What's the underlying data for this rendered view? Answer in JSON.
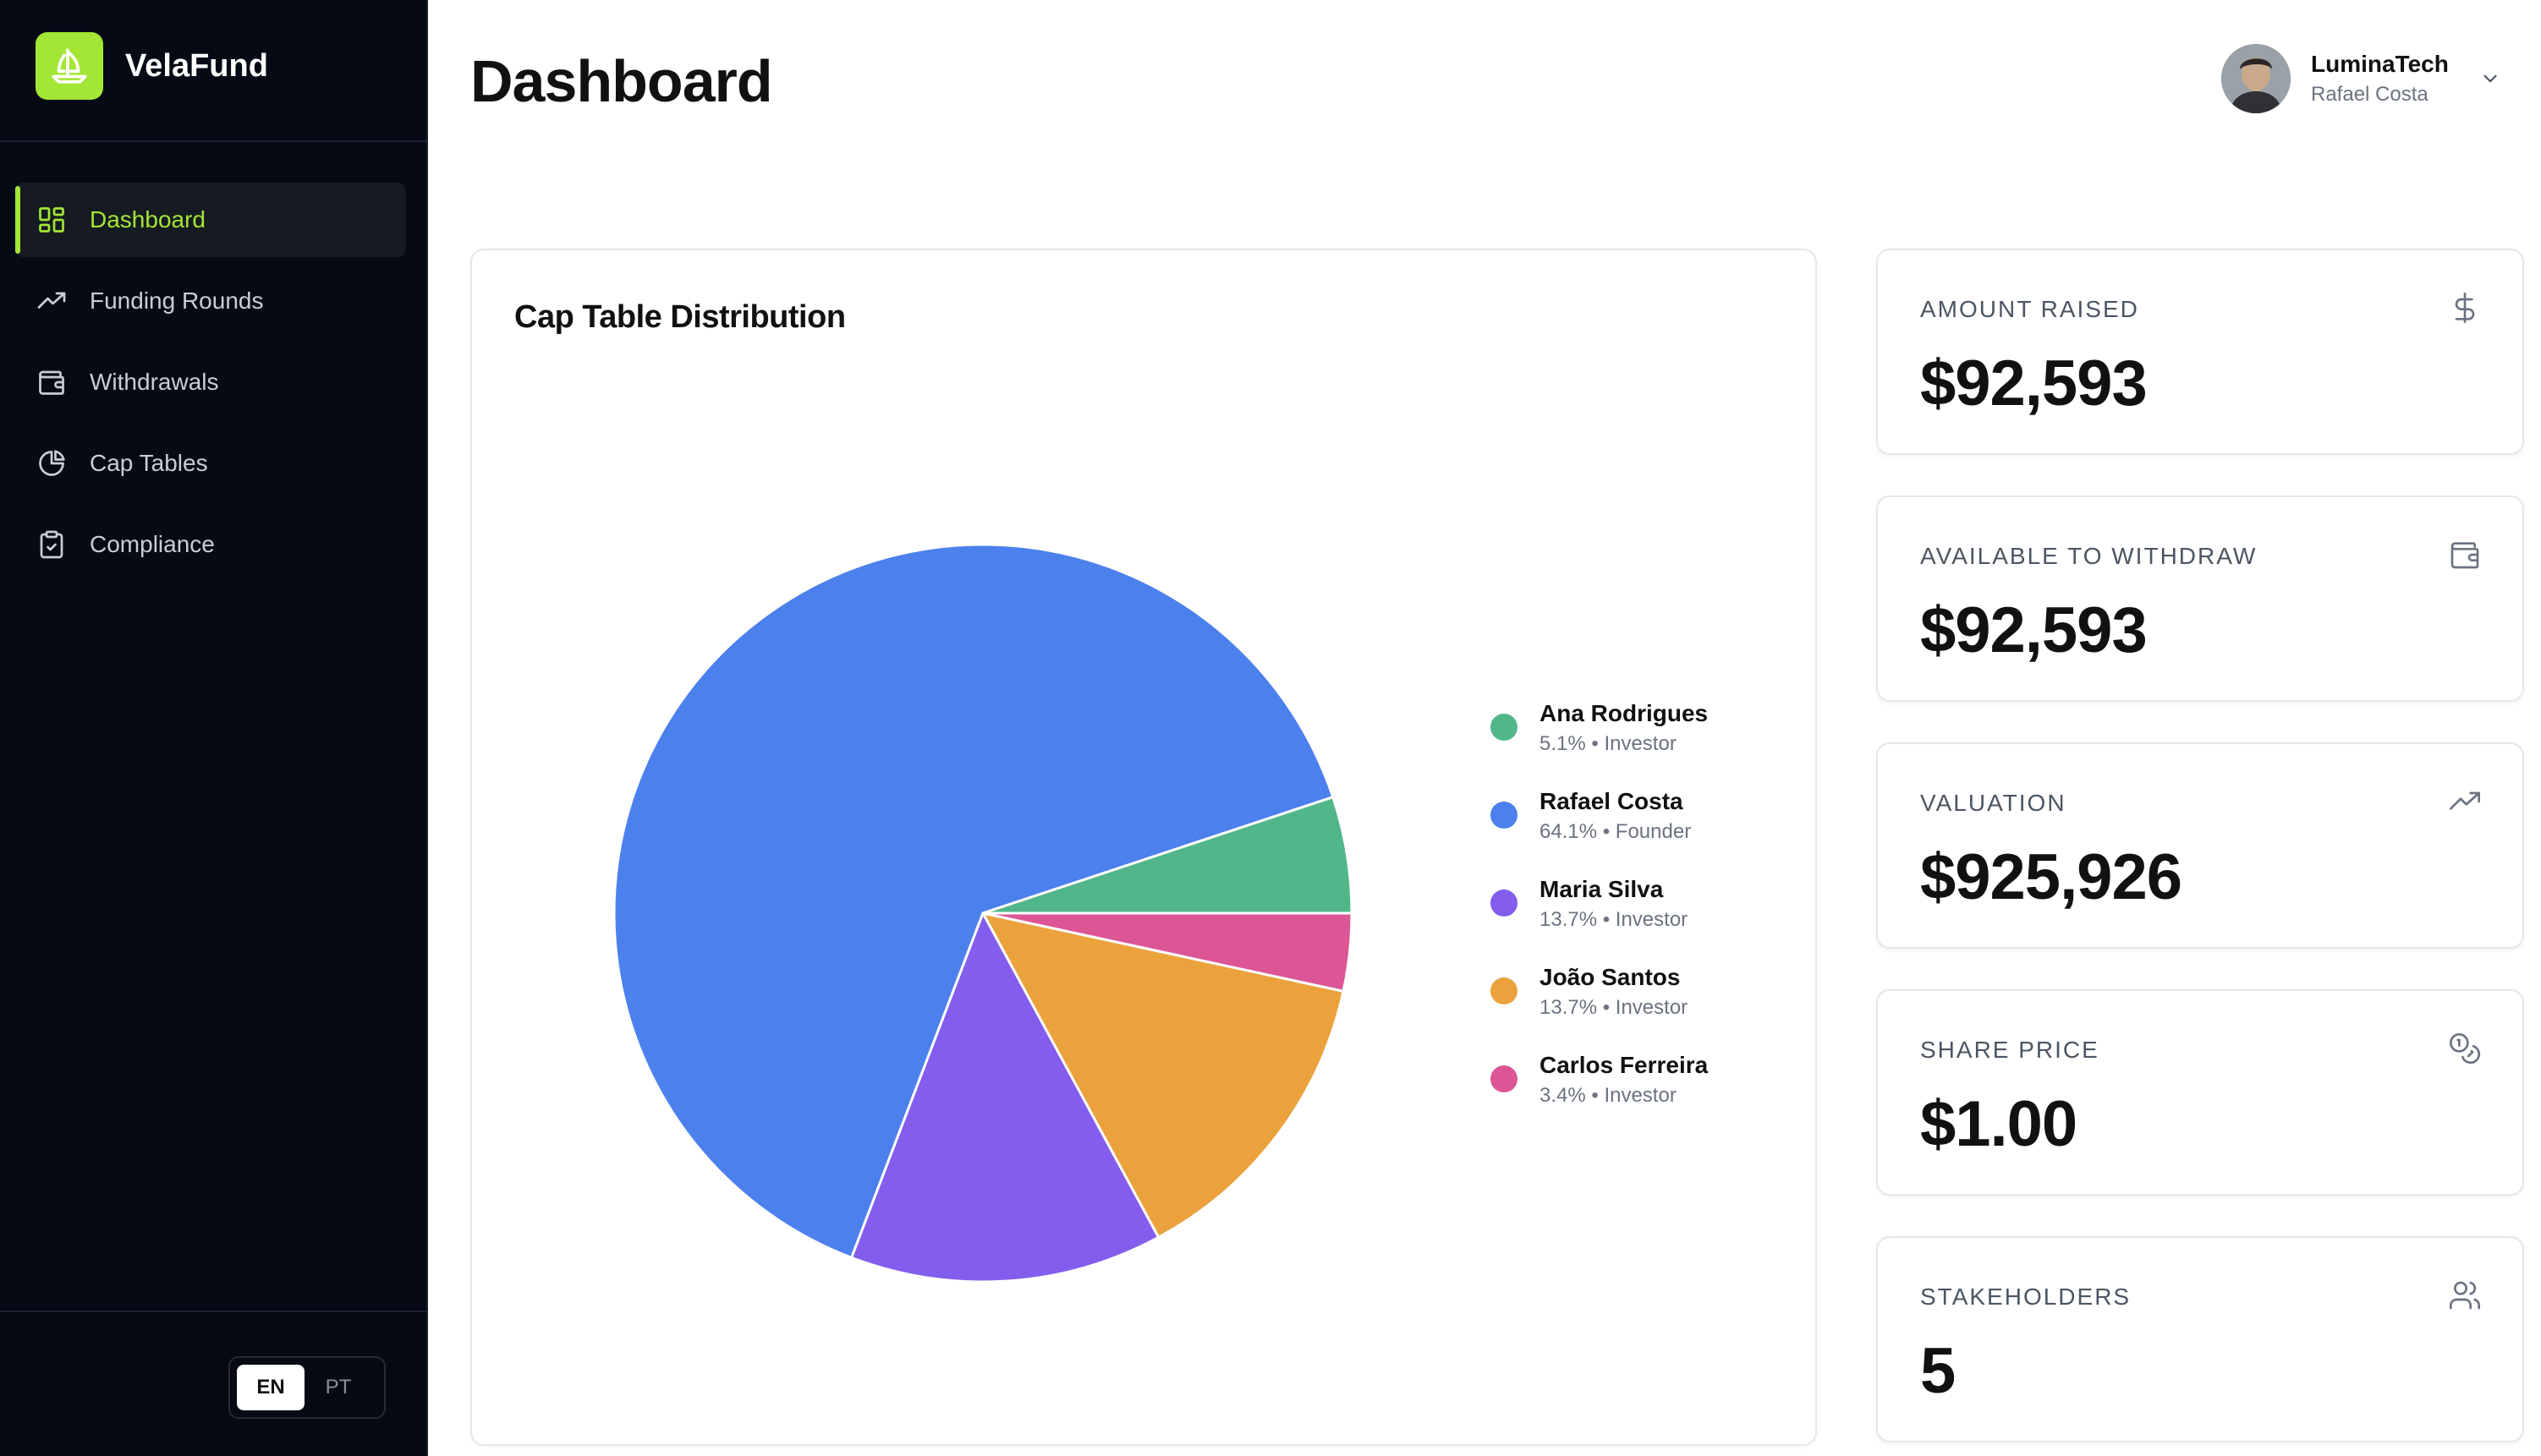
{
  "app": {
    "name": "VelaFund",
    "logo_icon": "sailboat-icon"
  },
  "sidebar": {
    "items": [
      {
        "label": "Dashboard",
        "icon": "grid-icon",
        "active": true
      },
      {
        "label": "Funding Rounds",
        "icon": "trending-up-icon",
        "active": false
      },
      {
        "label": "Withdrawals",
        "icon": "wallet-icon",
        "active": false
      },
      {
        "label": "Cap Tables",
        "icon": "pie-chart-icon",
        "active": false
      },
      {
        "label": "Compliance",
        "icon": "clipboard-check-icon",
        "active": false
      }
    ],
    "languages": [
      {
        "code": "EN",
        "active": true
      },
      {
        "code": "PT",
        "active": false
      }
    ],
    "accent": "#a3e635",
    "background": "#050a14"
  },
  "header": {
    "title": "Dashboard",
    "user": {
      "company": "LuminaTech",
      "name": "Rafael Costa"
    }
  },
  "cap_table": {
    "title": "Cap Table Distribution",
    "legend": [
      {
        "name": "Ana Rodrigues",
        "sub": "5.1% • Investor",
        "color": "#52b788"
      },
      {
        "name": "Rafael Costa",
        "sub": "64.1% • Founder",
        "color": "#4c80ec"
      },
      {
        "name": "Maria Silva",
        "sub": "13.7% • Investor",
        "color": "#835ded"
      },
      {
        "name": "João Santos",
        "sub": "13.7% • Investor",
        "color": "#eba23c"
      },
      {
        "name": "Carlos Ferreira",
        "sub": "3.4% • Investor",
        "color": "#dc5696"
      }
    ]
  },
  "chart_data": {
    "type": "pie",
    "title": "Cap Table Distribution",
    "categories": [
      "Ana Rodrigues",
      "Rafael Costa",
      "Maria Silva",
      "João Santos",
      "Carlos Ferreira"
    ],
    "values": [
      5.1,
      64.1,
      13.7,
      13.7,
      3.4
    ],
    "roles": [
      "Investor",
      "Founder",
      "Investor",
      "Investor",
      "Investor"
    ],
    "colors": [
      "#52b788",
      "#4c80ec",
      "#835ded",
      "#eba23c",
      "#dc5696"
    ],
    "draw_order": [
      4,
      3,
      2,
      1,
      0
    ],
    "start_angle_deg": 0,
    "direction": "clockwise",
    "legend_position": "right"
  },
  "stats": [
    {
      "label": "AMOUNT RAISED",
      "value": "$92,593",
      "icon": "dollar-icon"
    },
    {
      "label": "AVAILABLE TO WITHDRAW",
      "value": "$92,593",
      "icon": "wallet-icon"
    },
    {
      "label": "VALUATION",
      "value": "$925,926",
      "icon": "trending-up-icon"
    },
    {
      "label": "SHARE PRICE",
      "value": "$1.00",
      "icon": "coins-icon"
    },
    {
      "label": "STAKEHOLDERS",
      "value": "5",
      "icon": "users-icon"
    }
  ]
}
